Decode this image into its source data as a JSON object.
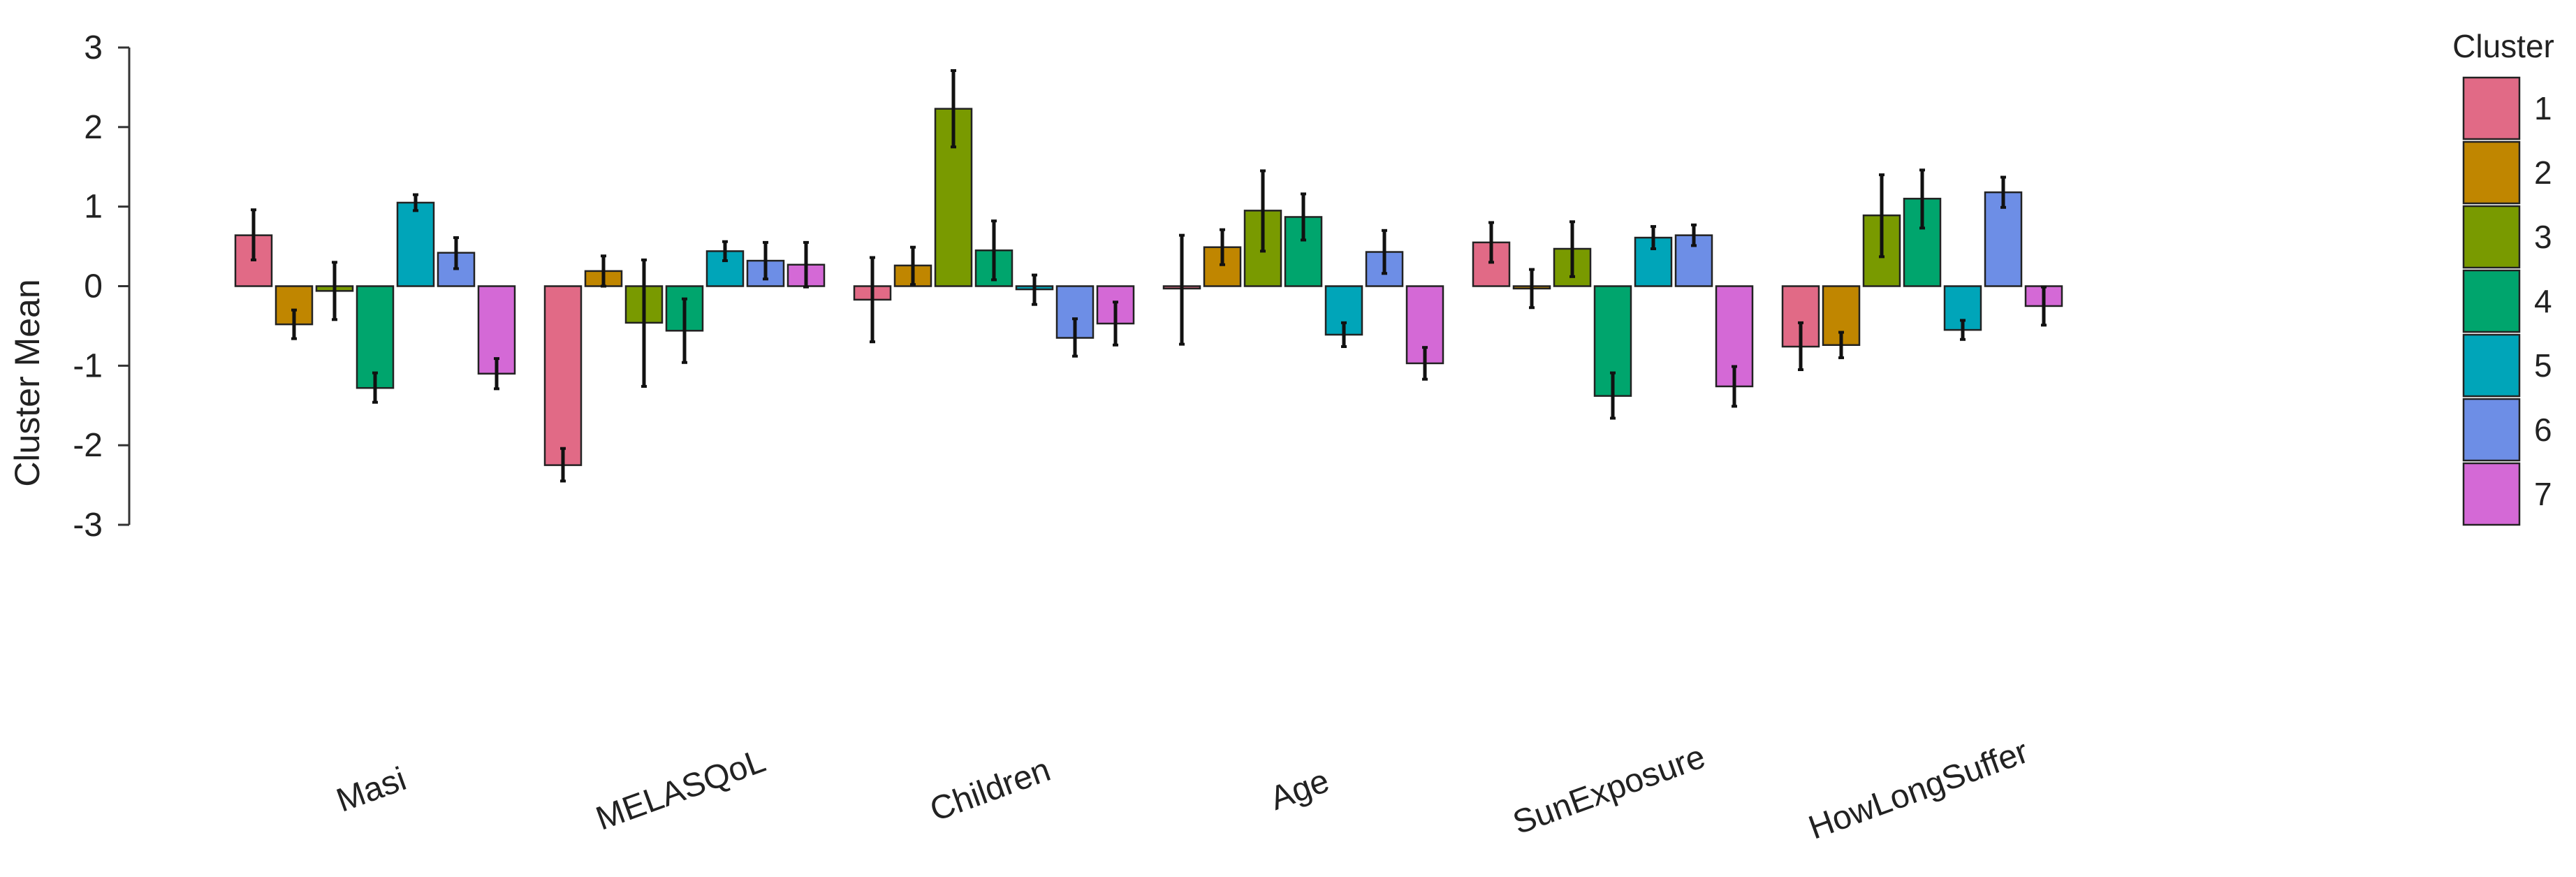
{
  "chart_data": {
    "type": "bar",
    "title": "",
    "xlabel": "",
    "ylabel": "Cluster Mean",
    "ylim": [
      -3,
      3
    ],
    "yticks": [
      3,
      2,
      1,
      0,
      -1,
      -2,
      -3
    ],
    "ytick_labels": [
      "3",
      "2",
      "1",
      "0",
      "-1",
      "-2",
      "-3"
    ],
    "categories": [
      "Masi",
      "MELASQoL",
      "Children",
      "Age",
      "SunExposure",
      "HowLongSuffer"
    ],
    "legend": {
      "title": "Cluster",
      "position": "right"
    },
    "series": [
      {
        "name": "1",
        "color": "#E16A86",
        "values": [
          0.64,
          -2.25,
          -0.17,
          -0.03,
          0.55,
          -0.76
        ],
        "err_low": [
          0.33,
          -2.45,
          -0.7,
          -0.73,
          0.3,
          -1.05
        ],
        "err_high": [
          0.96,
          -2.04,
          0.36,
          0.64,
          0.8,
          -0.46
        ]
      },
      {
        "name": "2",
        "color": "#C08600",
        "values": [
          -0.48,
          0.19,
          0.26,
          0.49,
          -0.03,
          -0.74
        ],
        "err_low": [
          -0.66,
          0.0,
          0.02,
          0.27,
          -0.27,
          -0.9
        ],
        "err_high": [
          -0.3,
          0.38,
          0.49,
          0.71,
          0.21,
          -0.58
        ]
      },
      {
        "name": "3",
        "color": "#799A00",
        "values": [
          -0.06,
          -0.46,
          2.23,
          0.95,
          0.47,
          0.89
        ],
        "err_low": [
          -0.42,
          -1.26,
          1.75,
          0.44,
          0.12,
          0.37
        ],
        "err_high": [
          0.3,
          0.33,
          2.71,
          1.45,
          0.81,
          1.4
        ]
      },
      {
        "name": "4",
        "color": "#00A56D",
        "values": [
          -1.28,
          -0.56,
          0.45,
          0.87,
          -1.38,
          1.1
        ],
        "err_low": [
          -1.46,
          -0.96,
          0.08,
          0.58,
          -1.66,
          0.73
        ],
        "err_high": [
          -1.09,
          -0.16,
          0.82,
          1.16,
          -1.09,
          1.46
        ]
      },
      {
        "name": "5",
        "color": "#00A5B9",
        "values": [
          1.05,
          0.44,
          -0.04,
          -0.61,
          0.61,
          -0.55
        ],
        "err_low": [
          0.95,
          0.32,
          -0.23,
          -0.76,
          0.47,
          -0.67
        ],
        "err_high": [
          1.15,
          0.56,
          0.14,
          -0.46,
          0.75,
          -0.43
        ]
      },
      {
        "name": "6",
        "color": "#6D8EE6",
        "values": [
          0.42,
          0.32,
          -0.65,
          0.43,
          0.64,
          1.18
        ],
        "err_low": [
          0.22,
          0.09,
          -0.88,
          0.16,
          0.51,
          0.99
        ],
        "err_high": [
          0.61,
          0.55,
          -0.41,
          0.7,
          0.77,
          1.37
        ]
      },
      {
        "name": "7",
        "color": "#D469D6",
        "values": [
          -1.1,
          0.27,
          -0.47,
          -0.97,
          -1.26,
          -0.25
        ],
        "err_low": [
          -1.29,
          -0.01,
          -0.74,
          -1.17,
          -1.51,
          -0.49
        ],
        "err_high": [
          -0.91,
          0.55,
          -0.2,
          -0.77,
          -1.01,
          -0.01
        ]
      }
    ]
  }
}
